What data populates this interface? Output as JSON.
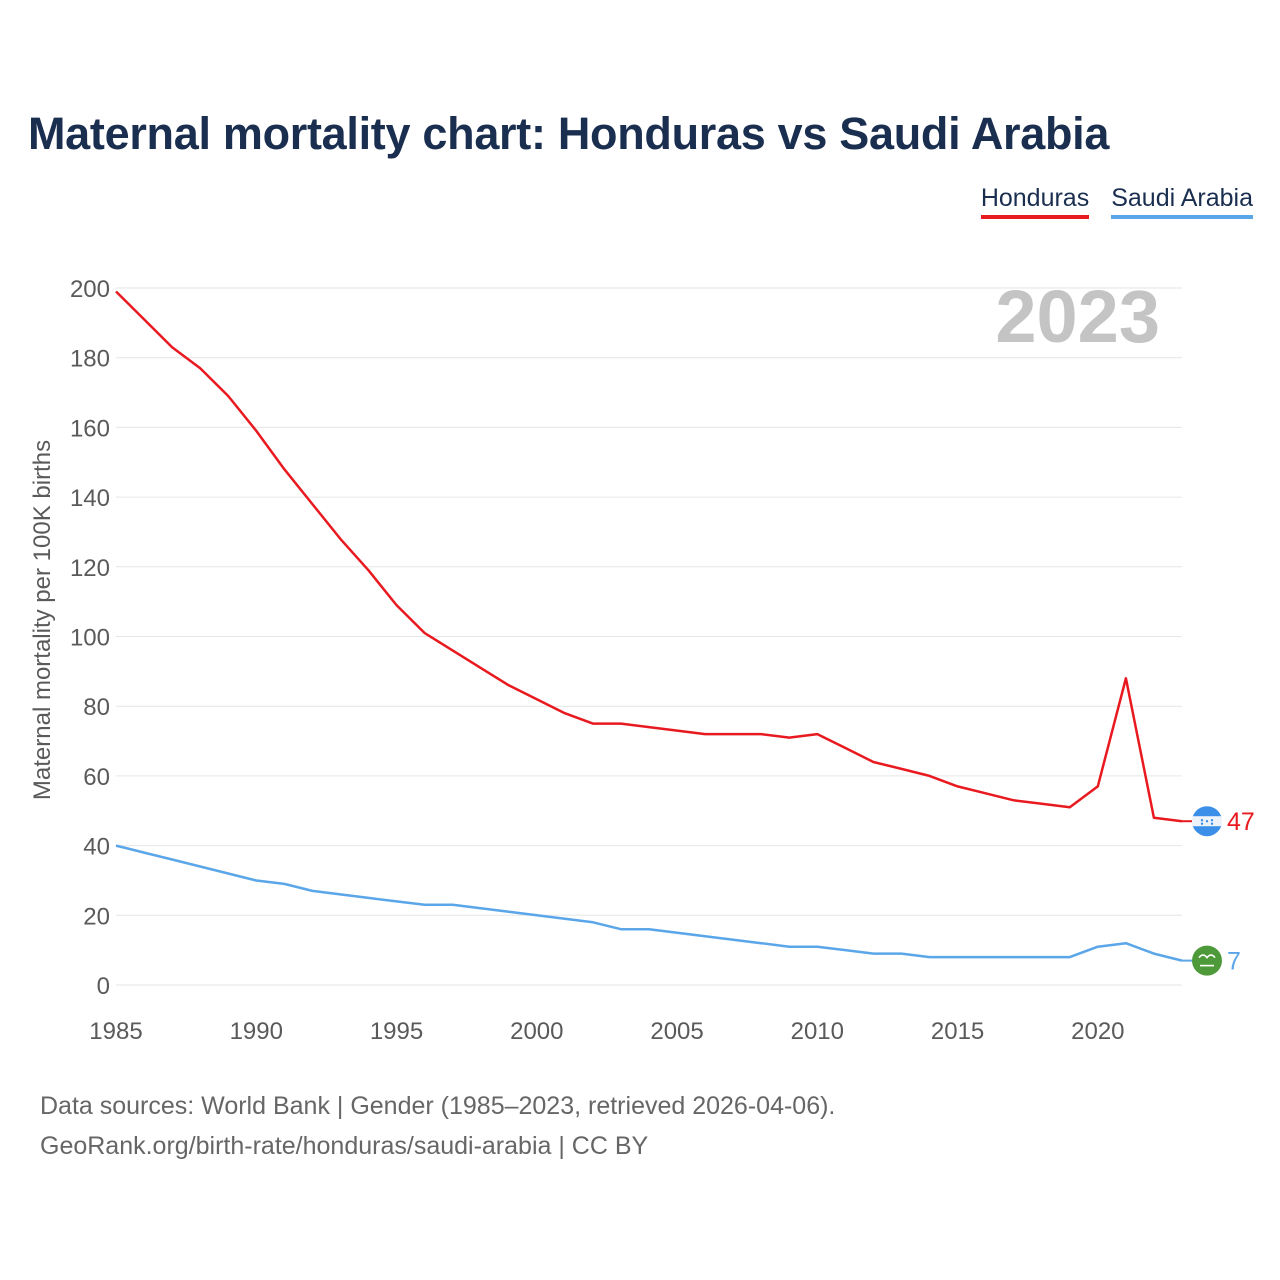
{
  "title": "Maternal mortality chart: Honduras vs Saudi Arabia",
  "legend": [
    {
      "label": "Honduras",
      "color": "#e8191f"
    },
    {
      "label": "Saudi Arabia",
      "color": "#5aa6e8"
    }
  ],
  "sources": {
    "line1": "Data sources: World Bank | Gender (1985–2023, retrieved 2026-04-06).",
    "line2": "GeoRank.org/birth-rate/honduras/saudi-arabia | CC BY"
  },
  "chart_data": {
    "type": "line",
    "title": "Maternal mortality chart: Honduras vs Saudi Arabia",
    "ylabel": "Maternal mortality per 100K births",
    "xlabel": "",
    "year_label": "2023",
    "xlim": [
      1985,
      2023
    ],
    "ylim": [
      0,
      200
    ],
    "x_ticks": [
      1985,
      1990,
      1995,
      2000,
      2005,
      2010,
      2015,
      2020
    ],
    "y_ticks": [
      0,
      20,
      40,
      60,
      80,
      100,
      120,
      140,
      160,
      180,
      200
    ],
    "grid": true,
    "legend_position": "top-right",
    "x": [
      1985,
      1986,
      1987,
      1988,
      1989,
      1990,
      1991,
      1992,
      1993,
      1994,
      1995,
      1996,
      1997,
      1998,
      1999,
      2000,
      2001,
      2002,
      2003,
      2004,
      2005,
      2006,
      2007,
      2008,
      2009,
      2010,
      2011,
      2012,
      2013,
      2014,
      2015,
      2016,
      2017,
      2018,
      2019,
      2020,
      2021,
      2022,
      2023
    ],
    "series": [
      {
        "name": "Honduras",
        "color": "#e8191f",
        "end_label": "47",
        "icon": "honduras-flag-icon",
        "values": [
          199,
          191,
          183,
          177,
          169,
          159,
          148,
          138,
          128,
          119,
          109,
          101,
          96,
          91,
          86,
          82,
          78,
          75,
          75,
          74,
          73,
          72,
          72,
          72,
          71,
          72,
          68,
          64,
          62,
          60,
          57,
          55,
          53,
          52,
          51,
          57,
          88,
          48,
          47
        ]
      },
      {
        "name": "Saudi Arabia",
        "color": "#5aa6e8",
        "end_label": "7",
        "icon": "saudi-arabia-flag-icon",
        "values": [
          40,
          38,
          36,
          34,
          32,
          30,
          29,
          27,
          26,
          25,
          24,
          23,
          23,
          22,
          21,
          20,
          19,
          18,
          16,
          16,
          15,
          14,
          13,
          12,
          11,
          11,
          10,
          9,
          9,
          8,
          8,
          8,
          8,
          8,
          8,
          11,
          12,
          9,
          7
        ]
      }
    ]
  }
}
